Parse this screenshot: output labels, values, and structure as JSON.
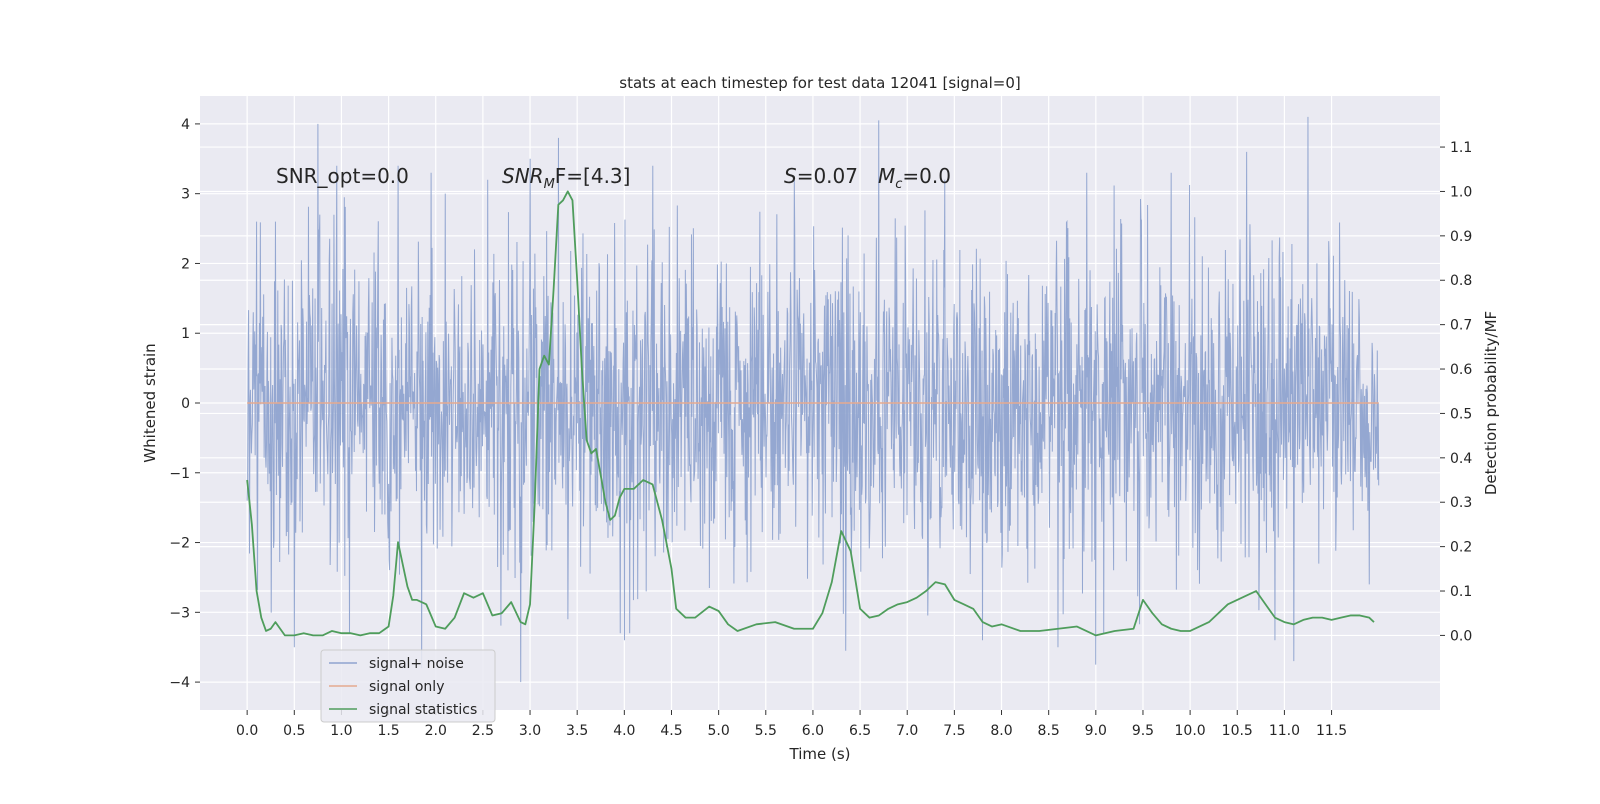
{
  "chart_data": {
    "type": "line",
    "title": "stats at each timestep for test data 12041 [signal=0]",
    "xlabel": "Time (s)",
    "ylabel": "Whitened strain",
    "y2label": "Detection probability/MF",
    "xlim": [
      -0.5,
      12.65
    ],
    "ylim": [
      -4.4,
      4.4
    ],
    "y2lim": [
      -0.168,
      1.215
    ],
    "xticks": [
      "0.0",
      "0.5",
      "1.0",
      "1.5",
      "2.0",
      "2.5",
      "3.0",
      "3.5",
      "4.0",
      "4.5",
      "5.0",
      "5.5",
      "6.0",
      "6.5",
      "7.0",
      "7.5",
      "8.0",
      "8.5",
      "9.0",
      "9.5",
      "10.0",
      "10.5",
      "11.0",
      "11.5"
    ],
    "yticks": [
      "4",
      "3",
      "2",
      "1",
      "0",
      "−1",
      "−2",
      "−3",
      "−4"
    ],
    "y2ticks": [
      "1.1",
      "1.0",
      "0.9",
      "0.8",
      "0.7",
      "0.6",
      "0.5",
      "0.4",
      "0.3",
      "0.2",
      "0.1",
      "0.0"
    ],
    "grid": true,
    "legend_position": "lower-left",
    "annotations": {
      "snr_opt": "SNR_opt=0.0",
      "snr_mf_prefix": "SNR",
      "snr_mf_sub": "M",
      "snr_mf_rest": "F=[4.3]",
      "s_sym": "S",
      "s_val": "=0.07",
      "mc_sym": "M",
      "mc_sub": "c",
      "mc_val": "=0.0"
    },
    "series": [
      {
        "name": "signal+ noise",
        "color": "#8fa3cf",
        "axis": "left",
        "style": "dense noise, roughly Gaussian, t = 0.0 to 12.0 s",
        "envelope_peaks": [
          [
            0.0,
            3.2
          ],
          [
            0.1,
            2.6
          ],
          [
            0.3,
            2.6
          ],
          [
            0.75,
            4.0
          ],
          [
            0.95,
            3.4
          ],
          [
            1.6,
            3.4
          ],
          [
            2.1,
            3.0
          ],
          [
            2.55,
            3.2
          ],
          [
            3.0,
            3.5
          ],
          [
            3.3,
            3.8
          ],
          [
            4.3,
            3.4
          ],
          [
            5.8,
            3.2
          ],
          [
            6.7,
            4.05
          ],
          [
            7.4,
            3.2
          ],
          [
            9.8,
            3.3
          ],
          [
            10.6,
            3.6
          ],
          [
            11.25,
            4.1
          ],
          [
            11.9,
            2.2
          ]
        ],
        "envelope_troughs": [
          [
            0.0,
            -1.4
          ],
          [
            0.5,
            -3.5
          ],
          [
            1.85,
            -3.8
          ],
          [
            2.9,
            -4.0
          ],
          [
            3.4,
            -3.1
          ],
          [
            4.0,
            -3.4
          ],
          [
            6.35,
            -3.55
          ],
          [
            7.8,
            -3.4
          ],
          [
            8.6,
            -3.5
          ],
          [
            9.0,
            -3.75
          ],
          [
            10.9,
            -3.4
          ],
          [
            11.1,
            -3.7
          ],
          [
            11.9,
            -2.6
          ]
        ]
      },
      {
        "name": "signal only",
        "color": "#e5a98f",
        "axis": "left",
        "x": [
          0.0,
          12.0
        ],
        "y": [
          0.0,
          0.0
        ]
      },
      {
        "name": "signal statistics",
        "color": "#4f9d5c",
        "axis": "right",
        "x": [
          0.0,
          0.05,
          0.1,
          0.15,
          0.2,
          0.25,
          0.3,
          0.4,
          0.5,
          0.6,
          0.7,
          0.8,
          0.9,
          1.0,
          1.1,
          1.2,
          1.3,
          1.4,
          1.5,
          1.55,
          1.6,
          1.7,
          1.75,
          1.8,
          1.9,
          2.0,
          2.1,
          2.2,
          2.3,
          2.4,
          2.5,
          2.6,
          2.7,
          2.8,
          2.9,
          2.95,
          3.0,
          3.05,
          3.1,
          3.15,
          3.2,
          3.25,
          3.3,
          3.35,
          3.4,
          3.45,
          3.5,
          3.55,
          3.6,
          3.65,
          3.7,
          3.8,
          3.85,
          3.9,
          3.95,
          4.0,
          4.1,
          4.15,
          4.2,
          4.3,
          4.4,
          4.5,
          4.55,
          4.65,
          4.75,
          4.9,
          5.0,
          5.1,
          5.2,
          5.4,
          5.6,
          5.8,
          6.0,
          6.1,
          6.2,
          6.3,
          6.4,
          6.5,
          6.6,
          6.7,
          6.8,
          6.9,
          7.0,
          7.1,
          7.2,
          7.3,
          7.4,
          7.5,
          7.6,
          7.7,
          7.8,
          7.9,
          8.0,
          8.2,
          8.4,
          8.6,
          8.8,
          9.0,
          9.2,
          9.4,
          9.5,
          9.6,
          9.7,
          9.8,
          9.9,
          10.0,
          10.2,
          10.4,
          10.6,
          10.7,
          10.8,
          10.9,
          11.0,
          11.1,
          11.2,
          11.3,
          11.4,
          11.5,
          11.6,
          11.7,
          11.8,
          11.9,
          11.95
        ],
        "y": [
          0.35,
          0.25,
          0.1,
          0.04,
          0.01,
          0.015,
          0.03,
          0.0,
          0.0,
          0.005,
          0.0,
          0.0,
          0.01,
          0.005,
          0.005,
          0.0,
          0.005,
          0.005,
          0.02,
          0.09,
          0.21,
          0.11,
          0.08,
          0.08,
          0.07,
          0.02,
          0.015,
          0.04,
          0.095,
          0.085,
          0.095,
          0.045,
          0.05,
          0.075,
          0.03,
          0.025,
          0.07,
          0.3,
          0.6,
          0.63,
          0.61,
          0.78,
          0.97,
          0.98,
          1.0,
          0.98,
          0.8,
          0.6,
          0.44,
          0.41,
          0.42,
          0.3,
          0.26,
          0.27,
          0.31,
          0.33,
          0.33,
          0.34,
          0.35,
          0.34,
          0.26,
          0.15,
          0.06,
          0.04,
          0.04,
          0.065,
          0.055,
          0.025,
          0.01,
          0.025,
          0.03,
          0.015,
          0.015,
          0.05,
          0.12,
          0.235,
          0.19,
          0.06,
          0.04,
          0.045,
          0.06,
          0.07,
          0.075,
          0.085,
          0.1,
          0.12,
          0.115,
          0.08,
          0.07,
          0.06,
          0.03,
          0.02,
          0.025,
          0.01,
          0.01,
          0.015,
          0.02,
          0.0,
          0.01,
          0.015,
          0.08,
          0.05,
          0.025,
          0.015,
          0.01,
          0.01,
          0.03,
          0.07,
          0.09,
          0.1,
          0.07,
          0.04,
          0.03,
          0.025,
          0.035,
          0.04,
          0.04,
          0.035,
          0.04,
          0.045,
          0.045,
          0.04,
          0.03
        ]
      }
    ]
  }
}
